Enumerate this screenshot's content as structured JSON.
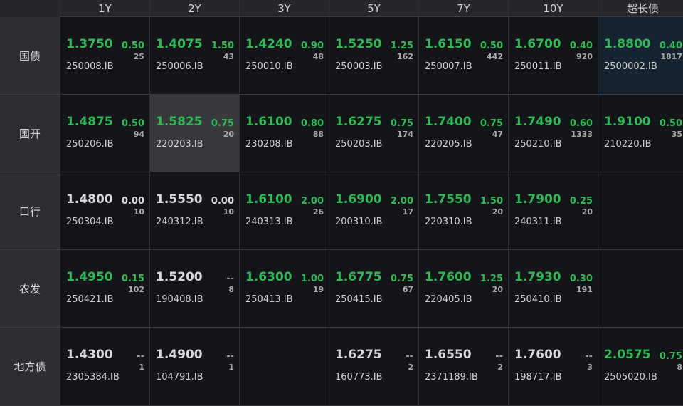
{
  "colors": {
    "up": "#2fb956",
    "flat": "#d8d8d8",
    "highlight_gray": "#37393d",
    "highlight_blue": "#162330"
  },
  "columns": [
    "1Y",
    "2Y",
    "3Y",
    "5Y",
    "7Y",
    "10Y",
    "超长债"
  ],
  "rows": [
    {
      "label": "国债",
      "cells": [
        {
          "price": "1.3750",
          "chg": "0.50",
          "vol": "25",
          "code": "250008.IB",
          "color": "green"
        },
        {
          "price": "1.4075",
          "chg": "1.50",
          "vol": "43",
          "code": "250006.IB",
          "color": "green"
        },
        {
          "price": "1.4240",
          "chg": "0.90",
          "vol": "48",
          "code": "250010.IB",
          "color": "green"
        },
        {
          "price": "1.5250",
          "chg": "1.25",
          "vol": "162",
          "code": "250003.IB",
          "color": "green"
        },
        {
          "price": "1.6150",
          "chg": "0.50",
          "vol": "442",
          "code": "250007.IB",
          "color": "green"
        },
        {
          "price": "1.6700",
          "chg": "0.40",
          "vol": "920",
          "code": "250011.IB",
          "color": "green"
        },
        {
          "price": "1.8800",
          "chg": "0.40",
          "vol": "1817",
          "code": "2500002.IB",
          "color": "green",
          "highlight": "blue"
        }
      ]
    },
    {
      "label": "国开",
      "cells": [
        {
          "price": "1.4875",
          "chg": "0.50",
          "vol": "94",
          "code": "250206.IB",
          "color": "green"
        },
        {
          "price": "1.5825",
          "chg": "0.75",
          "vol": "20",
          "code": "220203.IB",
          "color": "green",
          "highlight": "gray"
        },
        {
          "price": "1.6100",
          "chg": "0.80",
          "vol": "88",
          "code": "230208.IB",
          "color": "green"
        },
        {
          "price": "1.6275",
          "chg": "0.75",
          "vol": "174",
          "code": "250203.IB",
          "color": "green"
        },
        {
          "price": "1.7400",
          "chg": "0.75",
          "vol": "47",
          "code": "220205.IB",
          "color": "green"
        },
        {
          "price": "1.7490",
          "chg": "0.60",
          "vol": "1333",
          "code": "250210.IB",
          "color": "green"
        },
        {
          "price": "1.9100",
          "chg": "0.50",
          "vol": "35",
          "code": "210220.IB",
          "color": "green"
        }
      ]
    },
    {
      "label": "口行",
      "cells": [
        {
          "price": "1.4800",
          "chg": "0.00",
          "vol": "10",
          "code": "250304.IB",
          "color": "white"
        },
        {
          "price": "1.5550",
          "chg": "0.00",
          "vol": "10",
          "code": "240312.IB",
          "color": "white"
        },
        {
          "price": "1.6100",
          "chg": "2.00",
          "vol": "26",
          "code": "240313.IB",
          "color": "green"
        },
        {
          "price": "1.6900",
          "chg": "2.00",
          "vol": "17",
          "code": "200310.IB",
          "color": "green"
        },
        {
          "price": "1.7550",
          "chg": "1.50",
          "vol": "20",
          "code": "220310.IB",
          "color": "green"
        },
        {
          "price": "1.7900",
          "chg": "0.25",
          "vol": "20",
          "code": "240311.IB",
          "color": "green"
        },
        null
      ]
    },
    {
      "label": "农发",
      "cells": [
        {
          "price": "1.4950",
          "chg": "0.15",
          "vol": "102",
          "code": "250421.IB",
          "color": "green"
        },
        {
          "price": "1.5200",
          "chg": "--",
          "vol": "8",
          "code": "190408.IB",
          "color": "white"
        },
        {
          "price": "1.6300",
          "chg": "1.00",
          "vol": "19",
          "code": "250413.IB",
          "color": "green"
        },
        {
          "price": "1.6775",
          "chg": "0.75",
          "vol": "67",
          "code": "250415.IB",
          "color": "green"
        },
        {
          "price": "1.7600",
          "chg": "1.25",
          "vol": "20",
          "code": "220405.IB",
          "color": "green"
        },
        {
          "price": "1.7930",
          "chg": "0.30",
          "vol": "191",
          "code": "250410.IB",
          "color": "green"
        },
        null
      ]
    },
    {
      "label": "地方债",
      "cells": [
        {
          "price": "1.4300",
          "chg": "--",
          "vol": "1",
          "code": "2305384.IB",
          "color": "white"
        },
        {
          "price": "1.4900",
          "chg": "--",
          "vol": "1",
          "code": "104791.IB",
          "color": "white"
        },
        null,
        {
          "price": "1.6275",
          "chg": "--",
          "vol": "2",
          "code": "160773.IB",
          "color": "white"
        },
        {
          "price": "1.6550",
          "chg": "--",
          "vol": "2",
          "code": "2371189.IB",
          "color": "white"
        },
        {
          "price": "1.7600",
          "chg": "--",
          "vol": "3",
          "code": "198717.IB",
          "color": "white"
        },
        {
          "price": "2.0575",
          "chg": "0.75",
          "vol": "8",
          "code": "2505020.IB",
          "color": "green"
        }
      ]
    }
  ]
}
